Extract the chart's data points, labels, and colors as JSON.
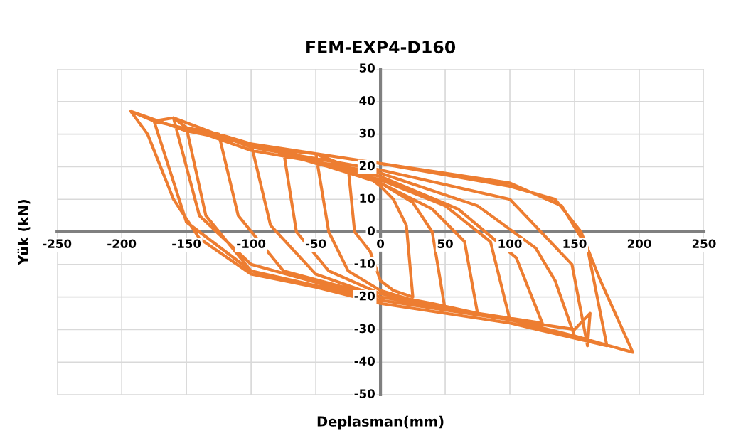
{
  "chart_data": {
    "type": "line",
    "title": "FEM-EXP4-D160",
    "xlabel": "Deplasman(mm)",
    "ylabel": "Yük (kN)",
    "xlim": [
      -250,
      250
    ],
    "xticks": [
      -250,
      -200,
      -150,
      -100,
      -50,
      0,
      50,
      100,
      150,
      200,
      250
    ],
    "ylim": [
      -50,
      50
    ],
    "yticks": [
      -50,
      -40,
      -30,
      -20,
      -10,
      0,
      10,
      20,
      30,
      40,
      50
    ],
    "grid": true,
    "marker": "none",
    "line_style": "solid",
    "series": [
      {
        "color": "#ed7d31",
        "x": [
          -25,
          -10,
          0,
          10,
          20,
          25,
          10,
          0,
          -8,
          -20,
          -25,
          -50,
          -25,
          0,
          25,
          40,
          50,
          25,
          0,
          -25,
          -40,
          -50,
          -75,
          -40,
          0,
          40,
          65,
          75,
          40,
          0,
          -40,
          -65,
          -75,
          -100,
          -50,
          0,
          50,
          85,
          100,
          50,
          0,
          -50,
          -85,
          -100,
          -125,
          -75,
          0,
          60,
          105,
          125,
          75,
          0,
          -75,
          -110,
          -125,
          -150,
          -100,
          0,
          75,
          120,
          135,
          150,
          100,
          0,
          -100,
          -135,
          -150,
          -160,
          -100,
          0,
          100,
          148,
          160,
          162,
          150,
          100,
          0,
          -100,
          -140,
          -160,
          -175,
          -100,
          0,
          100,
          140,
          160,
          175,
          100,
          0,
          -100,
          -150,
          -175,
          -193,
          -150,
          -100,
          0,
          100,
          135,
          155,
          170,
          195,
          150,
          100,
          0,
          -100,
          -140,
          -160,
          -180,
          -193
        ],
        "values": [
          20,
          17,
          14,
          10,
          2,
          -20,
          -18,
          -15,
          -6,
          0,
          20,
          24,
          19,
          15,
          9,
          0,
          -24,
          -21,
          -18,
          -12,
          0,
          24,
          25,
          20,
          15,
          7,
          -3,
          -25,
          -22,
          -19,
          -12,
          0,
          25,
          27,
          21,
          16,
          8,
          -3,
          -27,
          -23,
          -20,
          -13,
          2,
          27,
          30,
          24,
          17,
          7,
          -8,
          -28,
          -25,
          -20,
          -12,
          5,
          30,
          32,
          25,
          18,
          8,
          -5,
          -15,
          -32,
          -27,
          -21,
          -12,
          5,
          32,
          35,
          26,
          19,
          10,
          -10,
          -35,
          -25,
          -30,
          -27,
          -21,
          -10,
          5,
          35,
          34,
          27,
          21,
          15,
          8,
          -5,
          -35,
          -28,
          -22,
          -12,
          3,
          34,
          37,
          31,
          27,
          21,
          14,
          10,
          0,
          -15,
          -37,
          -32,
          -27,
          -21,
          -13,
          -2,
          10,
          30,
          37
        ]
      }
    ]
  }
}
